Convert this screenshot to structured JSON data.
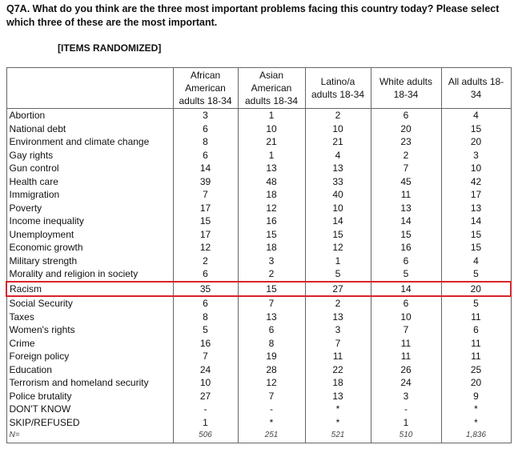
{
  "header": {
    "question": "Q7A. What do you think are the three most important problems facing this country today? Please select which three of these are the most important.",
    "note": "[ITEMS RANDOMIZED]"
  },
  "table": {
    "columns": [
      "African American adults 18-34",
      "Asian American adults 18-34",
      "Latino/a adults 18-34",
      "White adults 18-34",
      "All adults 18-34"
    ],
    "rows": [
      [
        "Abortion",
        "3",
        "1",
        "2",
        "6",
        "4"
      ],
      [
        "National debt",
        "6",
        "10",
        "10",
        "20",
        "15"
      ],
      [
        "Environment and climate change",
        "8",
        "21",
        "21",
        "23",
        "20"
      ],
      [
        "Gay rights",
        "6",
        "1",
        "4",
        "2",
        "3"
      ],
      [
        "Gun control",
        "14",
        "13",
        "13",
        "7",
        "10"
      ],
      [
        "Health care",
        "39",
        "48",
        "33",
        "45",
        "42"
      ],
      [
        "Immigration",
        "7",
        "18",
        "40",
        "11",
        "17"
      ],
      [
        "Poverty",
        "17",
        "12",
        "10",
        "13",
        "13"
      ],
      [
        "Income inequality",
        "15",
        "16",
        "14",
        "14",
        "14"
      ],
      [
        "Unemployment",
        "17",
        "15",
        "15",
        "15",
        "15"
      ],
      [
        "Economic growth",
        "12",
        "18",
        "12",
        "16",
        "15"
      ],
      [
        "Military strength",
        "2",
        "3",
        "1",
        "6",
        "4"
      ],
      [
        "Morality and religion in society",
        "6",
        "2",
        "5",
        "5",
        "5"
      ],
      [
        "Racism",
        "35",
        "15",
        "27",
        "14",
        "20"
      ],
      [
        "Social Security",
        "6",
        "7",
        "2",
        "6",
        "5"
      ],
      [
        "Taxes",
        "8",
        "13",
        "13",
        "10",
        "11"
      ],
      [
        "Women's rights",
        "5",
        "6",
        "3",
        "7",
        "6"
      ],
      [
        "Crime",
        "16",
        "8",
        "7",
        "11",
        "11"
      ],
      [
        "Foreign policy",
        "7",
        "19",
        "11",
        "11",
        "11"
      ],
      [
        "Education",
        "24",
        "28",
        "22",
        "26",
        "25"
      ],
      [
        "Terrorism and homeland security",
        "10",
        "12",
        "18",
        "24",
        "20"
      ],
      [
        "Police brutality",
        "27",
        "7",
        "13",
        "3",
        "9"
      ],
      [
        "DON'T KNOW",
        "-",
        "-",
        "*",
        "-",
        "*"
      ],
      [
        "SKIP/REFUSED",
        "1",
        "*",
        "*",
        "1",
        "*"
      ],
      [
        "N=",
        "506",
        "251",
        "521",
        "510",
        "1,836"
      ]
    ]
  }
}
